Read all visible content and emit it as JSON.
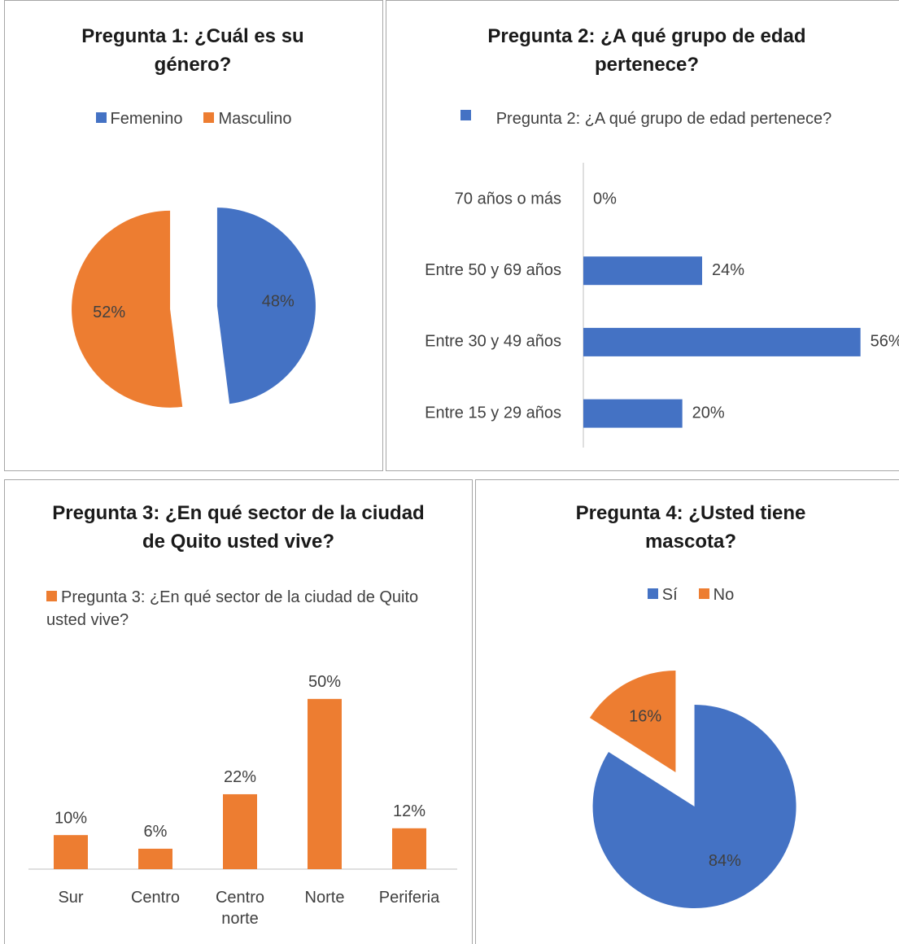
{
  "chart_data": [
    {
      "type": "pie",
      "title": "Pregunta 1: ¿Cuál es su género?",
      "categories": [
        "Femenino",
        "Masculino"
      ],
      "values": [
        48,
        52
      ],
      "value_labels": [
        "48%",
        "52%"
      ],
      "colors": [
        "#4472c4",
        "#ed7d31"
      ],
      "legend": "top"
    },
    {
      "type": "hbar",
      "title": "Pregunta 2: ¿A qué grupo de edad pertenece?",
      "categories": [
        "Entre 15 y 29 años",
        "Entre 30 y 49 años",
        "Entre 50 y 69 años",
        "70 años o más"
      ],
      "series": [
        {
          "name": "Pregunta 2: ¿A qué grupo de edad pertenece?",
          "color": "#4472c4",
          "values": [
            20,
            56,
            24,
            0
          ],
          "value_labels": [
            "20%",
            "56%",
            "24%",
            "0%"
          ]
        }
      ],
      "xlim": [
        0,
        60
      ],
      "legend": "top"
    },
    {
      "type": "bar",
      "title": "Pregunta 3: ¿En qué sector de la ciudad de Quito usted vive?",
      "categories": [
        "Sur",
        "Centro",
        "Centro norte",
        "Norte",
        "Periferia"
      ],
      "series": [
        {
          "name": "Pregunta 3: ¿En qué sector de la ciudad de Quito usted vive?",
          "color": "#ed7d31",
          "values": [
            10,
            6,
            22,
            50,
            12
          ],
          "value_labels": [
            "10%",
            "6%",
            "22%",
            "50%",
            "12%"
          ]
        }
      ],
      "ylim": [
        0,
        60
      ],
      "legend": "top"
    },
    {
      "type": "pie",
      "title": "Pregunta 4: ¿Usted tiene mascota?",
      "categories": [
        "Sí",
        "No"
      ],
      "values": [
        84,
        16
      ],
      "value_labels": [
        "84%",
        "16%"
      ],
      "colors": [
        "#4472c4",
        "#ed7d31"
      ],
      "legend": "top"
    }
  ]
}
